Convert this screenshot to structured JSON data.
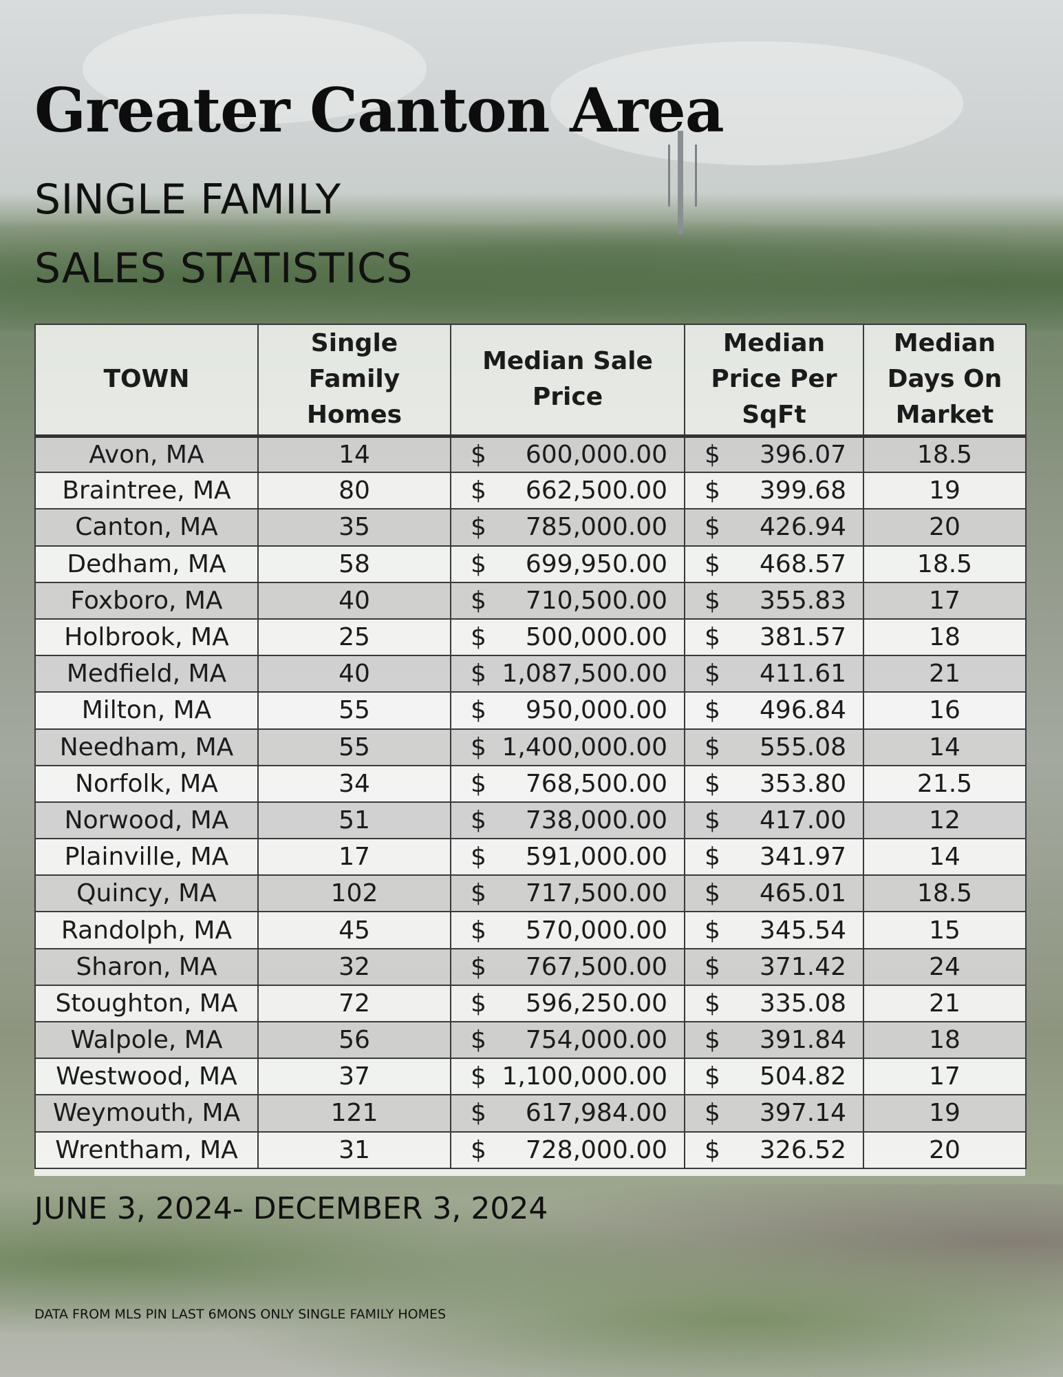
{
  "header": {
    "title": "Greater Canton Area",
    "subtitle_line1": "SINGLE FAMILY",
    "subtitle_line2": "SALES STATISTICS"
  },
  "table": {
    "columns": [
      "TOWN",
      "Single Family Homes",
      "Median Sale Price",
      "Median Price Per SqFt",
      "Median Days On Market"
    ],
    "currency_symbol": "$",
    "rows": [
      {
        "town": "Avon, MA",
        "homes": "14",
        "price": "600,000.00",
        "sqft": "396.07",
        "days": "18.5"
      },
      {
        "town": "Braintree, MA",
        "homes": "80",
        "price": "662,500.00",
        "sqft": "399.68",
        "days": "19"
      },
      {
        "town": "Canton, MA",
        "homes": "35",
        "price": "785,000.00",
        "sqft": "426.94",
        "days": "20"
      },
      {
        "town": "Dedham, MA",
        "homes": "58",
        "price": "699,950.00",
        "sqft": "468.57",
        "days": "18.5"
      },
      {
        "town": "Foxboro, MA",
        "homes": "40",
        "price": "710,500.00",
        "sqft": "355.83",
        "days": "17"
      },
      {
        "town": "Holbrook, MA",
        "homes": "25",
        "price": "500,000.00",
        "sqft": "381.57",
        "days": "18"
      },
      {
        "town": "Medfield, MA",
        "homes": "40",
        "price": "1,087,500.00",
        "sqft": "411.61",
        "days": "21"
      },
      {
        "town": "Milton, MA",
        "homes": "55",
        "price": "950,000.00",
        "sqft": "496.84",
        "days": "16"
      },
      {
        "town": "Needham, MA",
        "homes": "55",
        "price": "1,400,000.00",
        "sqft": "555.08",
        "days": "14"
      },
      {
        "town": "Norfolk, MA",
        "homes": "34",
        "price": "768,500.00",
        "sqft": "353.80",
        "days": "21.5"
      },
      {
        "town": "Norwood, MA",
        "homes": "51",
        "price": "738,000.00",
        "sqft": "417.00",
        "days": "12"
      },
      {
        "town": "Plainville, MA",
        "homes": "17",
        "price": "591,000.00",
        "sqft": "341.97",
        "days": "14"
      },
      {
        "town": "Quincy, MA",
        "homes": "102",
        "price": "717,500.00",
        "sqft": "465.01",
        "days": "18.5"
      },
      {
        "town": "Randolph, MA",
        "homes": "45",
        "price": "570,000.00",
        "sqft": "345.54",
        "days": "15"
      },
      {
        "town": "Sharon, MA",
        "homes": "32",
        "price": "767,500.00",
        "sqft": "371.42",
        "days": "24"
      },
      {
        "town": "Stoughton, MA",
        "homes": "72",
        "price": "596,250.00",
        "sqft": "335.08",
        "days": "21"
      },
      {
        "town": "Walpole, MA",
        "homes": "56",
        "price": "754,000.00",
        "sqft": "391.84",
        "days": "18"
      },
      {
        "town": "Westwood, MA",
        "homes": "37",
        "price": "1,100,000.00",
        "sqft": "504.82",
        "days": "17"
      },
      {
        "town": "Weymouth, MA",
        "homes": "121",
        "price": "617,984.00",
        "sqft": "397.14",
        "days": "19"
      },
      {
        "town": "Wrentham, MA",
        "homes": "31",
        "price": "728,000.00",
        "sqft": "326.52",
        "days": "20"
      }
    ]
  },
  "footer": {
    "date_range": "JUNE 3,  2024- DECEMBER 3, 2024",
    "source_note": "DATA FROM MLS PIN LAST 6MONS ONLY SINGLE FAMILY HOMES"
  }
}
